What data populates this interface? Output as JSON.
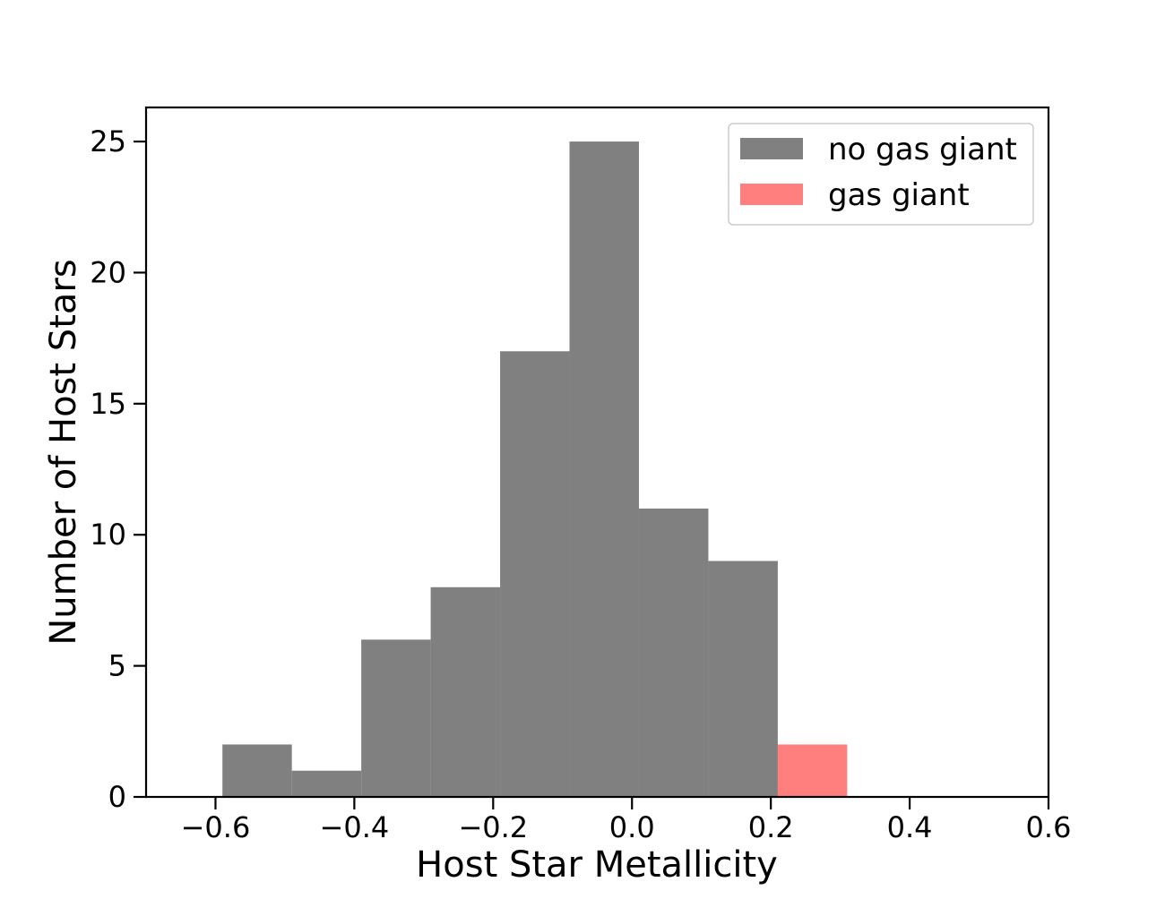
{
  "chart_data": {
    "type": "bar",
    "xlabel": "Host Star Metallicity",
    "ylabel": "Number of Host Stars",
    "xlim": [
      -0.7,
      0.6
    ],
    "ylim": [
      0,
      26.3
    ],
    "xticks": [
      -0.6,
      -0.4,
      -0.2,
      0.0,
      0.2,
      0.4,
      0.6
    ],
    "xtick_labels": [
      "−0.6",
      "−0.4",
      "−0.2",
      "0.0",
      "0.2",
      "0.4",
      "0.6"
    ],
    "yticks": [
      0,
      5,
      10,
      15,
      20,
      25
    ],
    "ytick_labels": [
      "0",
      "5",
      "10",
      "15",
      "20",
      "25"
    ],
    "grid": false,
    "legend_position": "top-right",
    "series": [
      {
        "name": "no gas giant",
        "color": "#808080",
        "opacity": 1.0,
        "bins": [
          {
            "x0": -0.59,
            "x1": -0.49,
            "count": 2
          },
          {
            "x0": -0.49,
            "x1": -0.39,
            "count": 1
          },
          {
            "x0": -0.39,
            "x1": -0.29,
            "count": 6
          },
          {
            "x0": -0.29,
            "x1": -0.19,
            "count": 8
          },
          {
            "x0": -0.19,
            "x1": -0.09,
            "count": 17
          },
          {
            "x0": -0.09,
            "x1": 0.01,
            "count": 25
          },
          {
            "x0": 0.01,
            "x1": 0.11,
            "count": 11
          },
          {
            "x0": 0.11,
            "x1": 0.21,
            "count": 9
          }
        ]
      },
      {
        "name": "gas giant",
        "color": "#ff0000",
        "opacity": 0.5,
        "bins": [
          {
            "x0": 0.21,
            "x1": 0.31,
            "count": 2
          }
        ]
      }
    ]
  }
}
